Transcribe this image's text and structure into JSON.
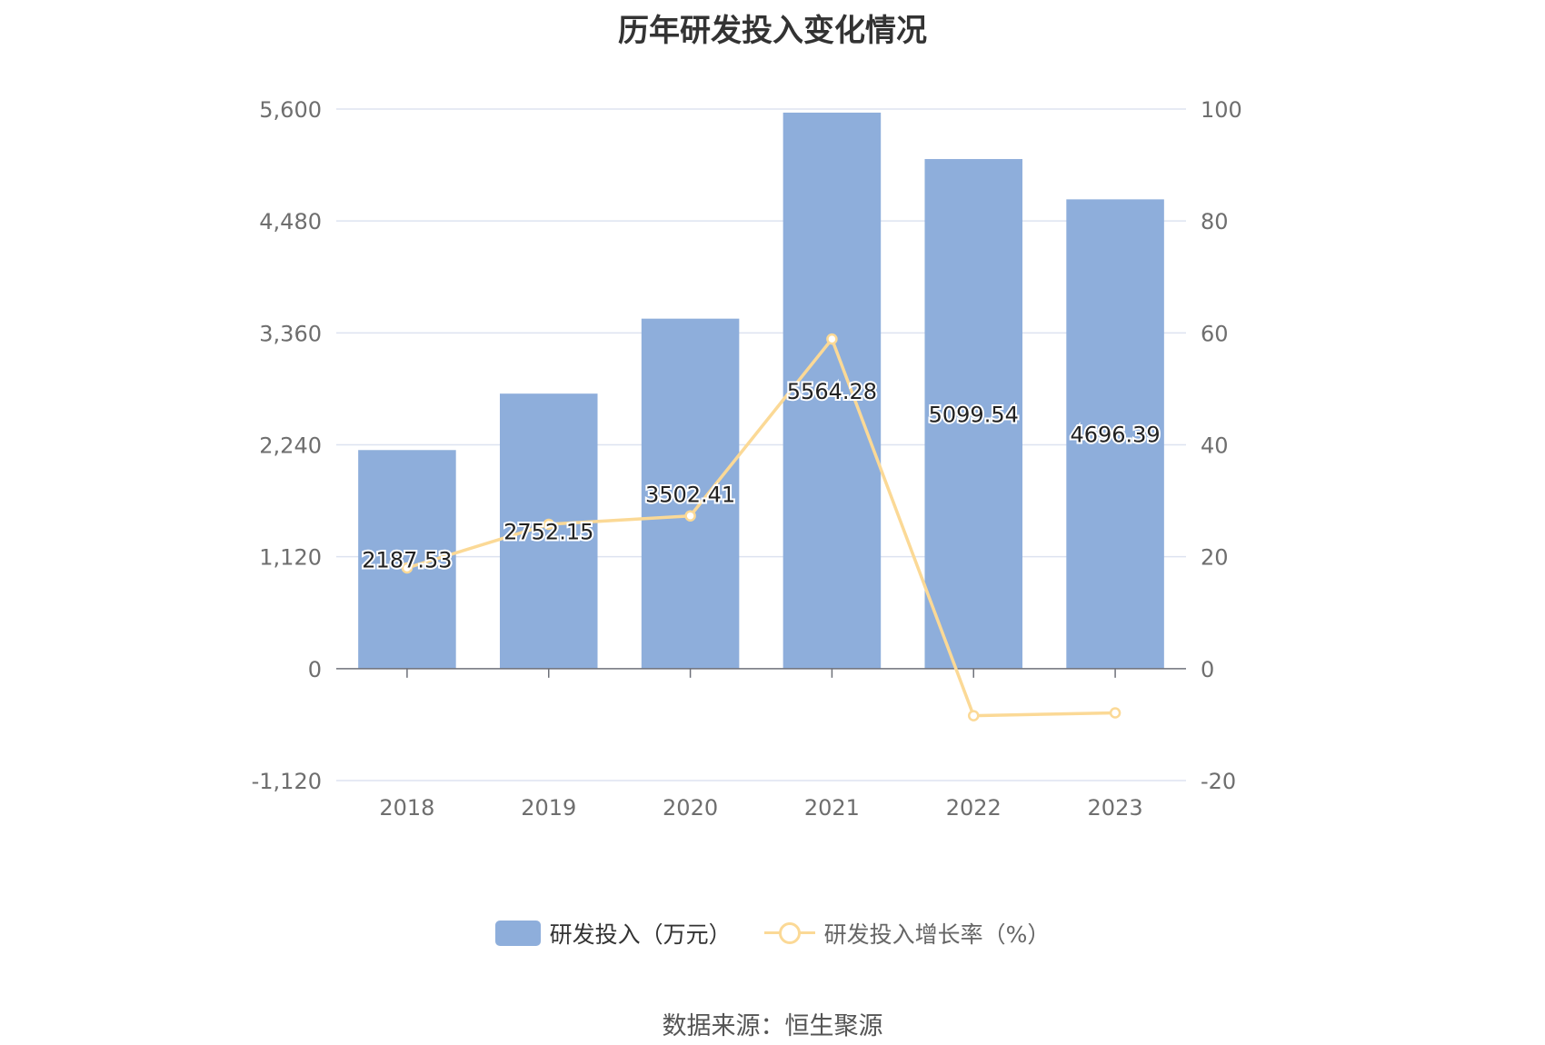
{
  "title": "历年研发投入变化情况",
  "source": "数据来源：恒生聚源",
  "colors": {
    "bar": "#8eaedb",
    "line": "#fbd996",
    "grid": "#dde3f0",
    "axis_text": "#6e6e6e"
  },
  "chart_data": {
    "type": "bar",
    "categories": [
      "2018",
      "2019",
      "2020",
      "2021",
      "2022",
      "2023"
    ],
    "series": [
      {
        "name": "研发投入（万元）",
        "type": "bar",
        "axis": "left",
        "values": [
          2187.53,
          2752.15,
          3502.41,
          5564.28,
          5099.54,
          4696.39
        ],
        "labels": [
          "2187.53",
          "2752.15",
          "3502.41",
          "5564.28",
          "5099.54",
          "4696.39"
        ]
      },
      {
        "name": "研发投入增长率（%）",
        "type": "line",
        "axis": "right",
        "values": [
          18.0,
          25.8,
          27.3,
          58.9,
          -8.4,
          -7.9
        ]
      }
    ],
    "y_left": {
      "min": -1120,
      "max": 5600,
      "ticks": [
        -1120,
        0,
        1120,
        2240,
        3360,
        4480,
        5600
      ],
      "tick_labels": [
        "-1,120",
        "0",
        "1,120",
        "2,240",
        "3,360",
        "4,480",
        "5,600"
      ]
    },
    "y_right": {
      "min": -20,
      "max": 100,
      "ticks": [
        -20,
        0,
        20,
        40,
        60,
        80,
        100
      ],
      "tick_labels": [
        "-20",
        "0",
        "20",
        "40",
        "60",
        "80",
        "100"
      ]
    },
    "grid": true,
    "legend_position": "bottom-center"
  }
}
